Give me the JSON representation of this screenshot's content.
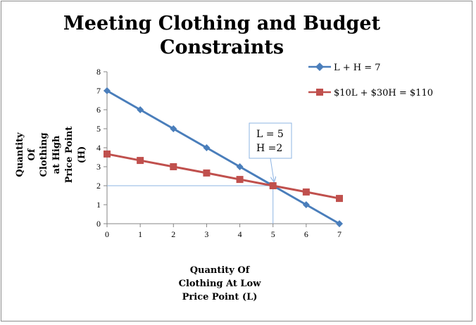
{
  "chart_data": {
    "type": "line",
    "title_lines": [
      "Meeting Clothing and Budget",
      "Constraints"
    ],
    "xlabel_lines": [
      "Quantity Of",
      "Clothing At Low",
      "Price Point (L)"
    ],
    "ylabel_lines": [
      "Quantity",
      "Of",
      "Clothing",
      "at High",
      "Price Point",
      "(H)"
    ],
    "x": [
      0,
      1,
      2,
      3,
      4,
      5,
      6,
      7
    ],
    "xlim": [
      0,
      7
    ],
    "ylim": [
      0,
      8
    ],
    "xticks": [
      "0",
      "1",
      "2",
      "3",
      "4",
      "5",
      "6",
      "7"
    ],
    "yticks": [
      "0",
      "1",
      "2",
      "3",
      "4",
      "5",
      "6",
      "7",
      "8"
    ],
    "grid": false,
    "legend_position": "top-right",
    "series": [
      {
        "name": "L + H = 7",
        "color": "#4a7ebb",
        "marker": "diamond",
        "values": [
          7,
          6,
          5,
          4,
          3,
          2,
          1,
          0
        ]
      },
      {
        "name": "$10L + $30H = $110",
        "color": "#c0504d",
        "marker": "square",
        "values": [
          3.67,
          3.33,
          3.0,
          2.67,
          2.33,
          2.0,
          1.67,
          1.33
        ]
      }
    ],
    "annotation": {
      "lines": [
        "L = 5",
        "H =2"
      ],
      "point": [
        5,
        2
      ]
    }
  }
}
